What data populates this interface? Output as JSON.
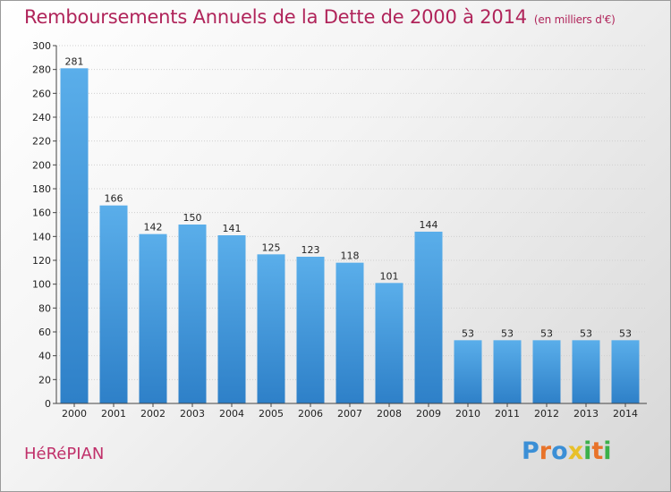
{
  "header": {
    "title": "Remboursements Annuels de la Dette de 2000 à 2014",
    "unit": "(en milliers d'€)"
  },
  "footer": {
    "commune": "HéRéPIAN",
    "logo": {
      "letters": [
        "P",
        "r",
        "o",
        "x",
        "i",
        "t",
        "i"
      ],
      "colors": [
        "#3b8fd6",
        "#e8732a",
        "#3b8fd6",
        "#e8c02a",
        "#3bb04a",
        "#e8732a",
        "#3bb04a"
      ]
    }
  },
  "chart_data": {
    "type": "bar",
    "title": "Remboursements Annuels de la Dette de 2000 à 2014",
    "categories": [
      "2000",
      "2001",
      "2002",
      "2003",
      "2004",
      "2005",
      "2006",
      "2007",
      "2008",
      "2009",
      "2010",
      "2011",
      "2012",
      "2013",
      "2014"
    ],
    "values": [
      281,
      166,
      142,
      150,
      141,
      125,
      123,
      118,
      101,
      144,
      53,
      53,
      53,
      53,
      53
    ],
    "ylim": [
      0,
      300
    ],
    "yticks": [
      0,
      20,
      40,
      60,
      80,
      100,
      120,
      140,
      160,
      180,
      200,
      220,
      240,
      260,
      280,
      300
    ],
    "grid": true,
    "bar_color": "#4a9fe0"
  }
}
